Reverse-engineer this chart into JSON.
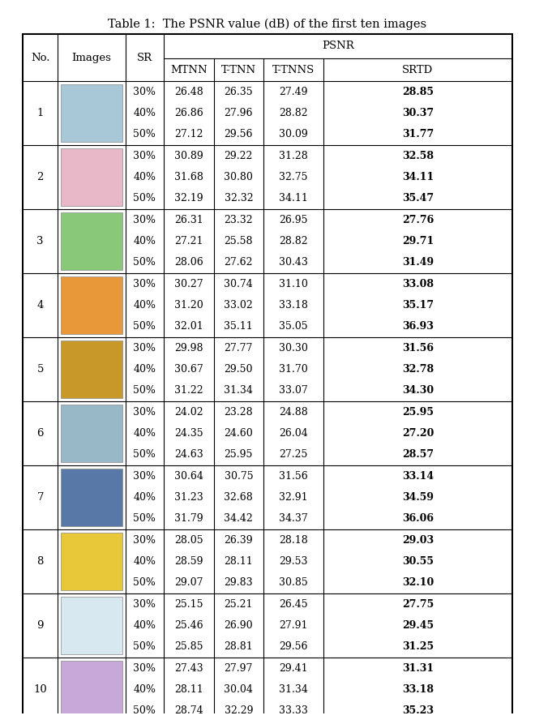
{
  "title": "Table 1:  The PSNR value (dB) of the first ten images",
  "psnr_subheaders": [
    "MTNN",
    "T-TNN",
    "T-TNNS",
    "SRTD"
  ],
  "rows": [
    {
      "no": "1",
      "sr": [
        "30%",
        "40%",
        "50%"
      ],
      "mtnn": [
        "26.48",
        "26.86",
        "27.12"
      ],
      "ttnn": [
        "26.35",
        "27.96",
        "29.56"
      ],
      "ttnns": [
        "27.49",
        "28.82",
        "30.09"
      ],
      "srtd": [
        "28.85",
        "30.37",
        "31.77"
      ]
    },
    {
      "no": "2",
      "sr": [
        "30%",
        "40%",
        "50%"
      ],
      "mtnn": [
        "30.89",
        "31.68",
        "32.19"
      ],
      "ttnn": [
        "29.22",
        "30.80",
        "32.32"
      ],
      "ttnns": [
        "31.28",
        "32.75",
        "34.11"
      ],
      "srtd": [
        "32.58",
        "34.11",
        "35.47"
      ]
    },
    {
      "no": "3",
      "sr": [
        "30%",
        "40%",
        "50%"
      ],
      "mtnn": [
        "26.31",
        "27.21",
        "28.06"
      ],
      "ttnn": [
        "23.32",
        "25.58",
        "27.62"
      ],
      "ttnns": [
        "26.95",
        "28.82",
        "30.43"
      ],
      "srtd": [
        "27.76",
        "29.71",
        "31.49"
      ]
    },
    {
      "no": "4",
      "sr": [
        "30%",
        "40%",
        "50%"
      ],
      "mtnn": [
        "30.27",
        "31.20",
        "32.01"
      ],
      "ttnn": [
        "30.74",
        "33.02",
        "35.11"
      ],
      "ttnns": [
        "31.10",
        "33.18",
        "35.05"
      ],
      "srtd": [
        "33.08",
        "35.17",
        "36.93"
      ]
    },
    {
      "no": "5",
      "sr": [
        "30%",
        "40%",
        "50%"
      ],
      "mtnn": [
        "29.98",
        "30.67",
        "31.22"
      ],
      "ttnn": [
        "27.77",
        "29.50",
        "31.34"
      ],
      "ttnns": [
        "30.30",
        "31.70",
        "33.07"
      ],
      "srtd": [
        "31.56",
        "32.78",
        "34.30"
      ]
    },
    {
      "no": "6",
      "sr": [
        "30%",
        "40%",
        "50%"
      ],
      "mtnn": [
        "24.02",
        "24.35",
        "24.63"
      ],
      "ttnn": [
        "23.28",
        "24.60",
        "25.95"
      ],
      "ttnns": [
        "24.88",
        "26.04",
        "27.25"
      ],
      "srtd": [
        "25.95",
        "27.20",
        "28.57"
      ]
    },
    {
      "no": "7",
      "sr": [
        "30%",
        "40%",
        "50%"
      ],
      "mtnn": [
        "30.64",
        "31.23",
        "31.79"
      ],
      "ttnn": [
        "30.75",
        "32.68",
        "34.42"
      ],
      "ttnns": [
        "31.56",
        "32.91",
        "34.37"
      ],
      "srtd": [
        "33.14",
        "34.59",
        "36.06"
      ]
    },
    {
      "no": "8",
      "sr": [
        "30%",
        "40%",
        "50%"
      ],
      "mtnn": [
        "28.05",
        "28.59",
        "29.07"
      ],
      "ttnn": [
        "26.39",
        "28.11",
        "29.83"
      ],
      "ttnns": [
        "28.18",
        "29.53",
        "30.85"
      ],
      "srtd": [
        "29.03",
        "30.55",
        "32.10"
      ]
    },
    {
      "no": "9",
      "sr": [
        "30%",
        "40%",
        "50%"
      ],
      "mtnn": [
        "25.15",
        "25.46",
        "25.85"
      ],
      "ttnn": [
        "25.21",
        "26.90",
        "28.81"
      ],
      "ttnns": [
        "26.45",
        "27.91",
        "29.56"
      ],
      "srtd": [
        "27.75",
        "29.45",
        "31.25"
      ]
    },
    {
      "no": "10",
      "sr": [
        "30%",
        "40%",
        "50%"
      ],
      "mtnn": [
        "27.43",
        "28.11",
        "28.74"
      ],
      "ttnn": [
        "27.97",
        "30.04",
        "32.29"
      ],
      "ttnns": [
        "29.41",
        "31.34",
        "33.33"
      ],
      "srtd": [
        "31.31",
        "33.18",
        "35.23"
      ]
    }
  ],
  "image_colors": [
    "#A8C8D8",
    "#E8B8C8",
    "#88C878",
    "#E89838",
    "#C89828",
    "#98B8C8",
    "#5878A8",
    "#E8C838",
    "#D8E8F0",
    "#C8A8D8"
  ],
  "fig_width": 6.4,
  "fig_height": 8.7,
  "font_size": 9.5,
  "title_font_size": 10.5
}
